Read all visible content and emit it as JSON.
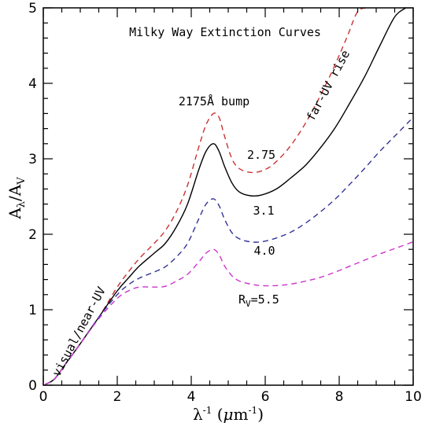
{
  "chart_data": {
    "type": "line",
    "title": "Milky Way Extinction Curves",
    "xlabel": {
      "main": "λ",
      "sup1": "-1",
      "unit_open": " (",
      "unit_mu": "μ",
      "unit_m": "m",
      "sup2": "-1",
      "unit_close": ")"
    },
    "ylabel": {
      "A": "A",
      "sub1": "λ",
      "slash": "/A",
      "sub2": "V"
    },
    "xlim": [
      0,
      10
    ],
    "ylim": [
      0,
      5
    ],
    "x_ticks": [
      {
        "value": 0,
        "label": "0"
      },
      {
        "value": 2,
        "label": "2"
      },
      {
        "value": 4,
        "label": "4"
      },
      {
        "value": 6,
        "label": "6"
      },
      {
        "value": 8,
        "label": "8"
      },
      {
        "value": 10,
        "label": "10"
      }
    ],
    "y_ticks": [
      {
        "value": 0,
        "label": "0"
      },
      {
        "value": 1,
        "label": "1"
      },
      {
        "value": 2,
        "label": "2"
      },
      {
        "value": 3,
        "label": "3"
      },
      {
        "value": 4,
        "label": "4"
      },
      {
        "value": 5,
        "label": "5"
      }
    ],
    "grid": false,
    "series": [
      {
        "label": "2.75",
        "color": "#cc3333",
        "dash": true,
        "x": [
          0.05,
          0.3,
          0.6,
          1.0,
          1.5,
          2.0,
          2.3,
          2.6,
          3.0,
          3.3,
          3.6,
          3.9,
          4.2,
          4.4,
          4.6,
          4.75,
          4.9,
          5.1,
          5.3,
          5.6,
          5.9,
          6.2,
          6.6,
          7.0,
          7.4,
          7.8,
          8.2,
          8.5,
          8.8
        ],
        "y": [
          0.01,
          0.08,
          0.28,
          0.55,
          0.9,
          1.3,
          1.5,
          1.68,
          1.88,
          2.05,
          2.3,
          2.65,
          3.15,
          3.45,
          3.6,
          3.55,
          3.3,
          3.0,
          2.87,
          2.82,
          2.84,
          2.92,
          3.12,
          3.4,
          3.75,
          4.15,
          4.6,
          4.95,
          5.0
        ]
      },
      {
        "label": "3.1",
        "color": "#000000",
        "dash": false,
        "x": [
          0.05,
          0.3,
          0.6,
          1.0,
          1.5,
          2.0,
          2.3,
          2.6,
          3.0,
          3.3,
          3.6,
          3.9,
          4.2,
          4.4,
          4.6,
          4.75,
          4.9,
          5.1,
          5.3,
          5.6,
          5.9,
          6.3,
          6.7,
          7.1,
          7.5,
          7.9,
          8.3,
          8.7,
          9.1,
          9.5,
          9.8
        ],
        "y": [
          0.01,
          0.08,
          0.28,
          0.55,
          0.9,
          1.25,
          1.42,
          1.58,
          1.75,
          1.88,
          2.1,
          2.4,
          2.85,
          3.1,
          3.2,
          3.1,
          2.9,
          2.68,
          2.56,
          2.51,
          2.52,
          2.6,
          2.75,
          2.92,
          3.15,
          3.42,
          3.75,
          4.1,
          4.5,
          4.88,
          5.0
        ]
      },
      {
        "label": "4.0",
        "color": "#333399",
        "dash": true,
        "x": [
          0.05,
          0.3,
          0.6,
          1.0,
          1.5,
          2.0,
          2.3,
          2.6,
          3.0,
          3.3,
          3.6,
          3.9,
          4.2,
          4.4,
          4.6,
          4.75,
          4.9,
          5.1,
          5.3,
          5.6,
          5.9,
          6.3,
          6.7,
          7.1,
          7.5,
          7.9,
          8.3,
          8.7,
          9.1,
          9.5,
          10.0
        ],
        "y": [
          0.01,
          0.08,
          0.28,
          0.55,
          0.9,
          1.2,
          1.33,
          1.42,
          1.5,
          1.57,
          1.7,
          1.88,
          2.2,
          2.4,
          2.47,
          2.38,
          2.2,
          2.02,
          1.94,
          1.9,
          1.9,
          1.95,
          2.03,
          2.15,
          2.3,
          2.47,
          2.67,
          2.88,
          3.1,
          3.3,
          3.55
        ]
      },
      {
        "label": "R_V=5.5",
        "color": "#cc33cc",
        "dash": true,
        "x": [
          0.05,
          0.3,
          0.6,
          1.0,
          1.5,
          2.0,
          2.3,
          2.6,
          3.0,
          3.3,
          3.6,
          3.9,
          4.2,
          4.4,
          4.6,
          4.75,
          4.9,
          5.1,
          5.3,
          5.6,
          5.9,
          6.3,
          6.7,
          7.1,
          7.5,
          7.9,
          8.3,
          8.7,
          9.1,
          9.5,
          10.0
        ],
        "y": [
          0.01,
          0.08,
          0.28,
          0.55,
          0.88,
          1.15,
          1.25,
          1.3,
          1.3,
          1.31,
          1.38,
          1.47,
          1.63,
          1.75,
          1.8,
          1.73,
          1.58,
          1.45,
          1.38,
          1.34,
          1.32,
          1.32,
          1.34,
          1.38,
          1.43,
          1.5,
          1.58,
          1.66,
          1.74,
          1.81,
          1.9
        ]
      }
    ],
    "annotations": {
      "bump": "2175Å bump",
      "far_uv": "far-UV rise",
      "visual": "visual/near-UV",
      "label_275": "2.75",
      "label_31": "3.1",
      "label_40": "4.0",
      "label_55_R": "R",
      "label_55_sub": "V",
      "label_55_val": "=5.5"
    }
  }
}
